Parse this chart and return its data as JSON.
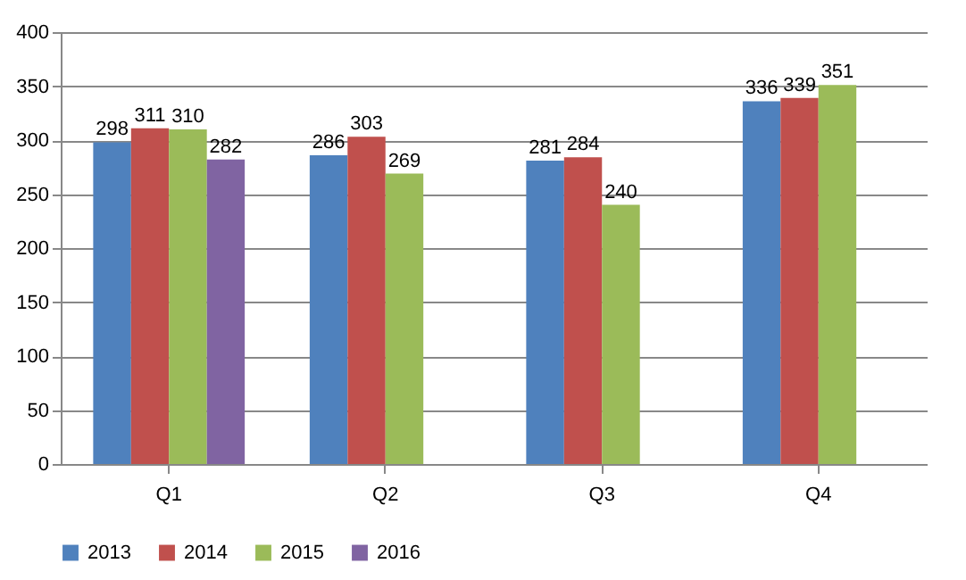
{
  "chart_data": {
    "type": "bar",
    "categories": [
      "Q1",
      "Q2",
      "Q3",
      "Q4"
    ],
    "series": [
      {
        "name": "2013",
        "color": "#4f81bd",
        "values": [
          298,
          286,
          281,
          336
        ]
      },
      {
        "name": "2014",
        "color": "#c0504d",
        "values": [
          311,
          303,
          284,
          339
        ]
      },
      {
        "name": "2015",
        "color": "#9bbb59",
        "values": [
          310,
          269,
          240,
          351
        ]
      },
      {
        "name": "2016",
        "color": "#8064a2",
        "values": [
          282,
          null,
          null,
          null
        ]
      }
    ],
    "ylim": [
      0,
      400
    ],
    "yticks": [
      0,
      50,
      100,
      150,
      200,
      250,
      300,
      350,
      400
    ],
    "grid": "y",
    "legend": "bottom",
    "data_labels": true
  }
}
